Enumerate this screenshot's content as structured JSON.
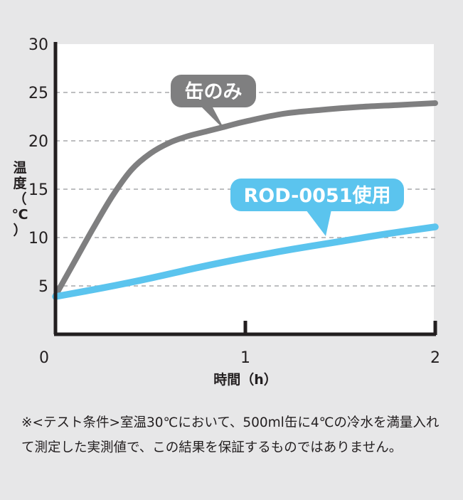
{
  "chart_data": {
    "type": "line",
    "x_ticks": [
      "0",
      "1",
      "2"
    ],
    "y_ticks": [
      "5",
      "10",
      "15",
      "20",
      "25",
      "30"
    ],
    "xlim": [
      0,
      2
    ],
    "ylim": [
      0,
      30
    ],
    "xlabel": "時間（h）",
    "ylabel": [
      "温",
      "度",
      "（",
      "℃",
      "）"
    ],
    "grid": "horizontal-dashed",
    "series": [
      {
        "name": "缶のみ",
        "color": "#7f7f80",
        "x": [
          0,
          0.1,
          0.2,
          0.3,
          0.4,
          0.5,
          0.6,
          0.7,
          0.8,
          0.9,
          1.0,
          1.2,
          1.4,
          1.6,
          1.8,
          2.0
        ],
        "y": [
          4,
          7.5,
          11.0,
          14.3,
          17.0,
          18.7,
          19.8,
          20.5,
          21.0,
          21.5,
          22.0,
          22.8,
          23.2,
          23.5,
          23.7,
          23.9
        ]
      },
      {
        "name": "ROD-0051使用",
        "color": "#5bc4ee",
        "x": [
          0,
          0.25,
          0.5,
          0.75,
          1.0,
          1.25,
          1.5,
          1.75,
          2.0
        ],
        "y": [
          3.9,
          4.8,
          5.8,
          6.9,
          7.9,
          8.8,
          9.6,
          10.4,
          11.1
        ]
      }
    ]
  },
  "footnote": "※<テスト条件>室温30℃において、500ml缶に4℃の冷水を満量入れて測定した実測値で、この結果を保証するものではありません。"
}
